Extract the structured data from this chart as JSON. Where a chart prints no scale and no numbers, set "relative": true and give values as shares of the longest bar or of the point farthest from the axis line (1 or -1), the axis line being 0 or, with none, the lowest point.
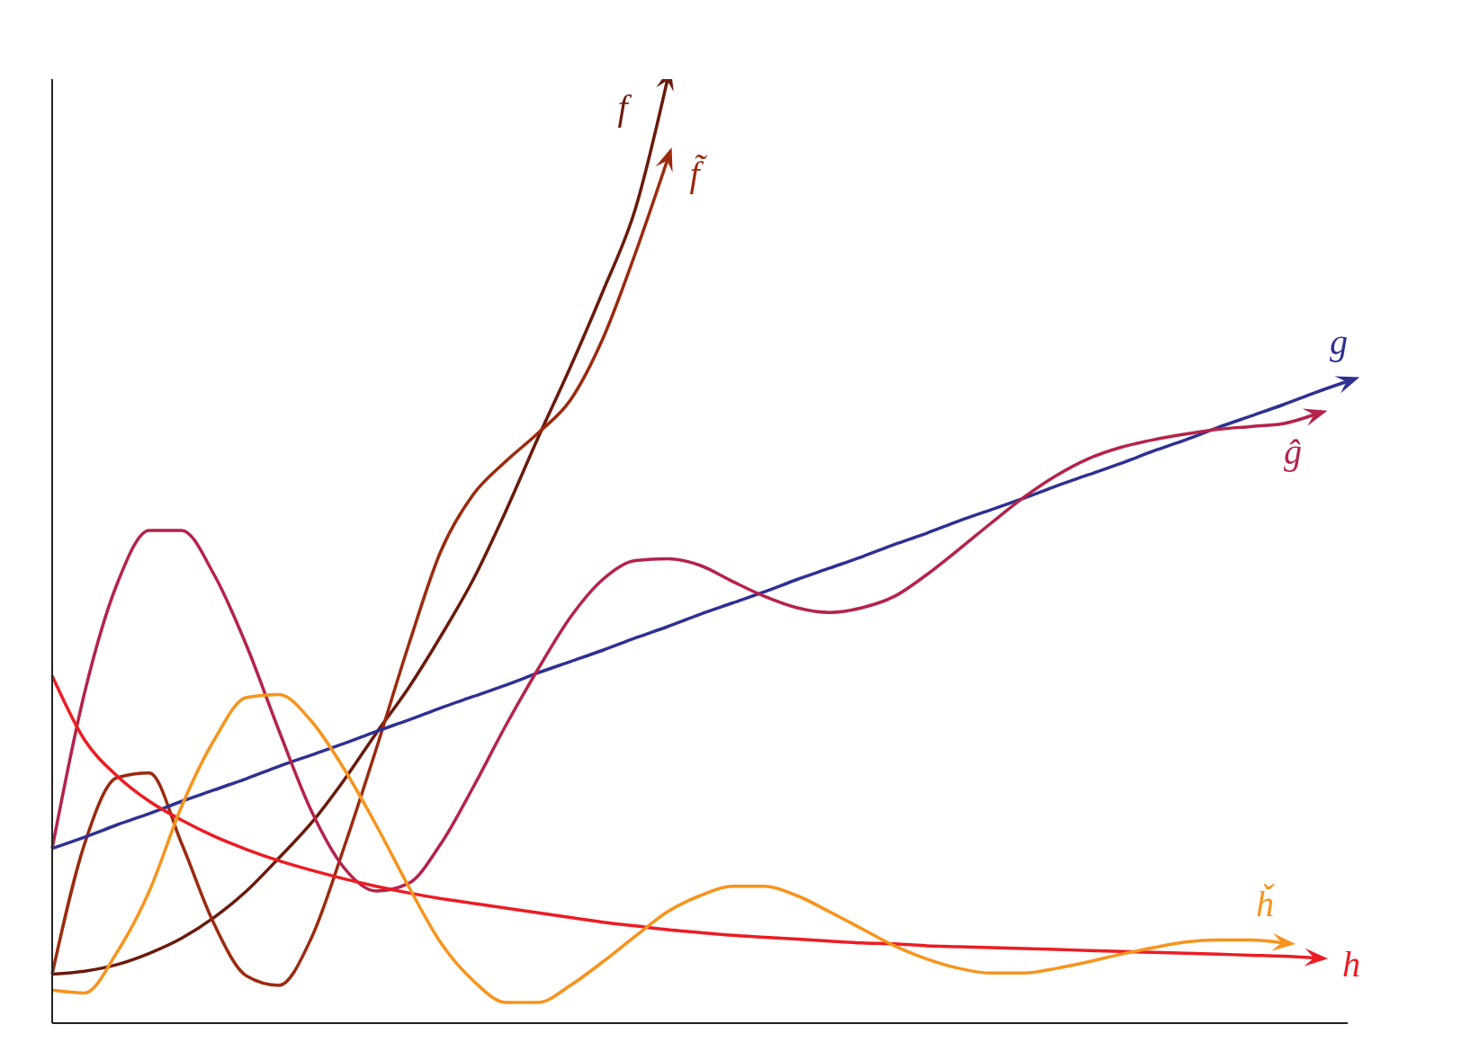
{
  "chart_data": {
    "type": "line",
    "relative": true,
    "categories": [
      null,
      null,
      null,
      null,
      null,
      null,
      null,
      null,
      null,
      null,
      null,
      null,
      null,
      null,
      null,
      null,
      null,
      null,
      null,
      null,
      null,
      null,
      null,
      null,
      null,
      null,
      null,
      null,
      null,
      null,
      null,
      null,
      null,
      null,
      null,
      null,
      null,
      null,
      null,
      null,
      null
    ],
    "series": [
      {
        "name": "f",
        "color": "#6b1a0c",
        "values": [
          0.052,
          0.055,
          0.062,
          0.074,
          0.09,
          0.112,
          0.14,
          0.175,
          0.212,
          0.257,
          0.307,
          0.355,
          0.41,
          0.47,
          0.542,
          0.62,
          0.695,
          0.775,
          0.862,
          1.0,
          null,
          null,
          null,
          null,
          null,
          null,
          null,
          null,
          null,
          null,
          null,
          null,
          null,
          null,
          null,
          null,
          null,
          null,
          null,
          null,
          null
        ]
      },
      {
        "name": "f̃",
        "color": "#9c2a0e",
        "values": [
          0.052,
          0.19,
          0.26,
          0.265,
          0.19,
          0.105,
          0.05,
          0.04,
          0.09,
          0.185,
          0.29,
          0.4,
          0.5,
          0.56,
          0.595,
          0.625,
          0.66,
          0.725,
          0.815,
          0.915,
          null,
          null,
          null,
          null,
          null,
          null,
          null,
          null,
          null,
          null,
          null,
          null,
          null,
          null,
          null,
          null,
          null,
          null,
          null,
          null,
          null
        ]
      },
      {
        "name": "g",
        "color": "#2e3192",
        "values": [
          0.185,
          0.197,
          0.21,
          0.222,
          0.235,
          0.247,
          0.259,
          0.272,
          0.284,
          0.296,
          0.309,
          0.321,
          0.334,
          0.346,
          0.358,
          0.371,
          0.383,
          0.395,
          0.408,
          0.42,
          0.433,
          0.445,
          0.457,
          0.47,
          0.482,
          0.494,
          0.507,
          0.519,
          0.532,
          0.544,
          0.556,
          0.569,
          0.581,
          0.593,
          0.606,
          0.618,
          0.631,
          0.643,
          0.655,
          0.668,
          0.68
        ]
      },
      {
        "name": "ĝ",
        "color": "#b5234a",
        "values": [
          0.185,
          0.35,
          0.465,
          0.522,
          0.522,
          0.475,
          0.4,
          0.31,
          0.225,
          0.165,
          0.14,
          0.148,
          0.19,
          0.25,
          0.315,
          0.375,
          0.43,
          0.47,
          0.49,
          0.492,
          0.485,
          0.468,
          0.452,
          0.44,
          0.435,
          0.44,
          0.452,
          0.475,
          0.502,
          0.53,
          0.557,
          0.58,
          0.598,
          0.61,
          0.618,
          0.624,
          0.629,
          0.632,
          0.635,
          0.645,
          null
        ]
      },
      {
        "name": "h",
        "color": "#ed1c24",
        "values": [
          0.368,
          0.3,
          0.262,
          0.235,
          0.215,
          0.198,
          0.184,
          0.172,
          0.162,
          0.153,
          0.145,
          0.138,
          0.132,
          0.127,
          0.122,
          0.117,
          0.112,
          0.107,
          0.103,
          0.099,
          0.096,
          0.093,
          0.091,
          0.089,
          0.087,
          0.085,
          0.084,
          0.082,
          0.081,
          0.08,
          0.079,
          0.078,
          0.077,
          0.076,
          0.075,
          0.074,
          0.073,
          0.072,
          0.071,
          0.069,
          null
        ]
      },
      {
        "name": "ȟ",
        "color": "#f7941d",
        "values": [
          0.035,
          0.032,
          0.075,
          0.14,
          0.23,
          0.3,
          0.345,
          0.348,
          0.32,
          0.27,
          0.21,
          0.145,
          0.085,
          0.045,
          0.022,
          0.022,
          0.04,
          0.065,
          0.092,
          0.118,
          0.135,
          0.145,
          0.145,
          0.135,
          0.118,
          0.1,
          0.082,
          0.068,
          0.058,
          0.053,
          0.053,
          0.058,
          0.065,
          0.073,
          0.08,
          0.086,
          0.088,
          0.088,
          0.085,
          null,
          null
        ]
      }
    ]
  }
}
